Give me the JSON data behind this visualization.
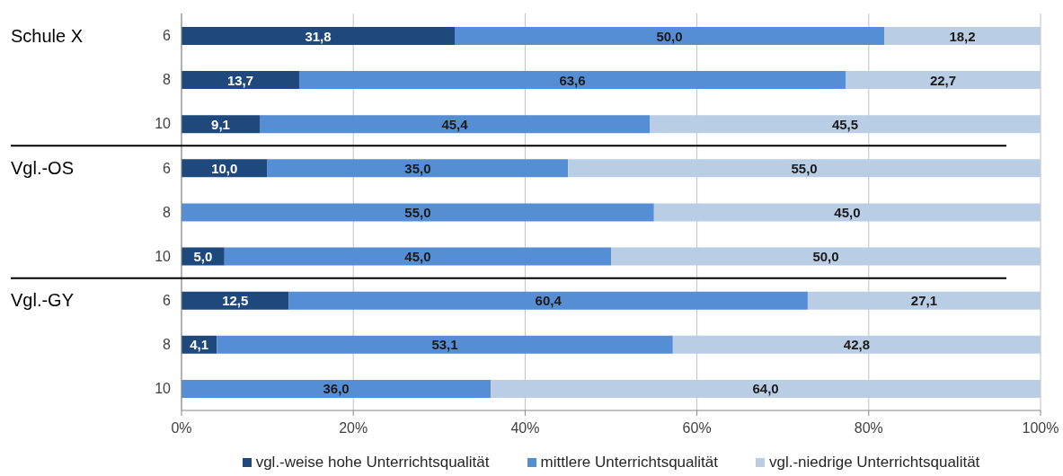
{
  "chart_data": {
    "type": "bar",
    "orientation": "horizontal",
    "stacked": true,
    "categories": [
      "6",
      "8",
      "10",
      "6",
      "8",
      "10",
      "6",
      "8",
      "10"
    ],
    "series": [
      {
        "name": "vgl.-weise hohe Unterrichtsqualität",
        "color": "#1f497d",
        "values": [
          31.8,
          13.7,
          9.1,
          10.0,
          null,
          5.0,
          12.5,
          4.1,
          null
        ],
        "value_labels": [
          "31,8",
          "13,7",
          "9,1",
          "10,0",
          null,
          "5,0",
          "12,5",
          "4,1",
          null
        ]
      },
      {
        "name": "mittlere Unterrichtsqualität",
        "color": "#558ed5",
        "values": [
          50.0,
          63.6,
          45.4,
          35.0,
          55.0,
          45.0,
          60.4,
          53.1,
          36.0
        ],
        "value_labels": [
          "50,0",
          "63,6",
          "45,4",
          "35,0",
          "55,0",
          "45,0",
          "60,4",
          "53,1",
          "36,0"
        ]
      },
      {
        "name": "vgl.-niedrige Unterrichtsqualität",
        "color": "#b9cde5",
        "values": [
          18.2,
          22.7,
          45.5,
          55.0,
          45.0,
          50.0,
          27.1,
          42.8,
          64.0
        ],
        "value_labels": [
          "18,2",
          "22,7",
          "45,5",
          "55,0",
          "45,0",
          "50,0",
          "27,1",
          "42,8",
          "64,0"
        ]
      }
    ],
    "xlim": [
      0,
      100
    ],
    "xticks": [
      {
        "value": 0,
        "label": "0%"
      },
      {
        "value": 20,
        "label": "20%"
      },
      {
        "value": 40,
        "label": "40%"
      },
      {
        "value": 60,
        "label": "60%"
      },
      {
        "value": 80,
        "label": "80%"
      },
      {
        "value": 100,
        "label": "100%"
      }
    ],
    "grid": "x",
    "legend": "bottom",
    "annotations": [
      "Schule X",
      "Vgl.-OS",
      "Vgl.-GY"
    ]
  }
}
